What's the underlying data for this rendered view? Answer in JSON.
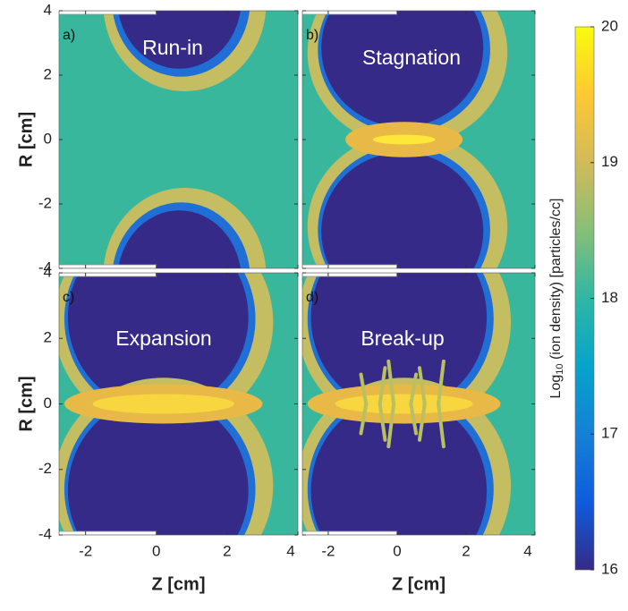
{
  "chart_data": [
    {
      "type": "heatmap",
      "panel_label": "a)",
      "annotation": "Run-in",
      "xlim": [
        -2.75,
        4
      ],
      "ylim": [
        -4,
        4
      ],
      "xticks": [
        -2,
        0,
        2,
        4
      ],
      "yticks": [
        -4,
        -2,
        0,
        2,
        4
      ],
      "ylabel": "R [cm]",
      "xticklabels": false,
      "yticklabels": true
    },
    {
      "type": "heatmap",
      "panel_label": "b)",
      "annotation": "Stagnation",
      "xlim": [
        -2.75,
        4
      ],
      "ylim": [
        -4,
        4
      ],
      "xticks": [
        -2,
        0,
        2,
        4
      ],
      "yticks": [
        -4,
        -2,
        0,
        2,
        4
      ],
      "xticklabels": false,
      "yticklabels": false
    },
    {
      "type": "heatmap",
      "panel_label": "c)",
      "annotation": "Expansion",
      "xlim": [
        -2.75,
        4
      ],
      "ylim": [
        -4,
        4
      ],
      "xticks": [
        -2,
        0,
        2,
        4
      ],
      "yticks": [
        -4,
        -2,
        0,
        2,
        4
      ],
      "xlabel": "Z [cm]",
      "ylabel": "R [cm]",
      "xticklabels": true,
      "yticklabels": true
    },
    {
      "type": "heatmap",
      "panel_label": "d)",
      "annotation": "Break-up",
      "xlim": [
        -2.75,
        4
      ],
      "ylim": [
        -4,
        4
      ],
      "xticks": [
        -2,
        0,
        2,
        4
      ],
      "yticks": [
        -4,
        -2,
        0,
        2,
        4
      ],
      "xlabel": "Z [cm]",
      "xticklabels": true,
      "yticklabels": false
    },
    {
      "type": "colorbar",
      "label_base": "Log",
      "label_subscript": "10",
      "label_rest": " (ion density) [particles/cc]",
      "ylim": [
        16,
        20
      ],
      "yticks": [
        16,
        17,
        18,
        19,
        20
      ],
      "colors": [
        "#352a87",
        "#0f5cdd",
        "#1481d6",
        "#06a4ca",
        "#2eb7a4",
        "#87bf77",
        "#d1bb59",
        "#fec832",
        "#f9fb0e"
      ]
    }
  ]
}
